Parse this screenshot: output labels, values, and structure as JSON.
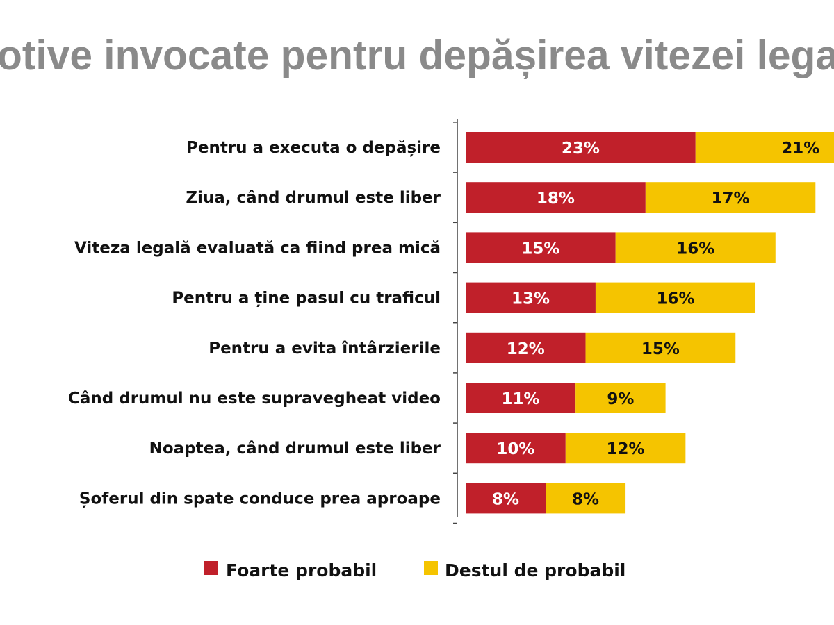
{
  "chart_data": {
    "type": "bar",
    "orientation": "horizontal",
    "stacked": true,
    "title": "otive invocate pentru depășirea vitezei lega",
    "categories": [
      "Pentru a executa o depășire",
      "Ziua, când drumul este liber",
      "Viteza legală evaluată ca fiind prea mică",
      "Pentru a ține pasul cu traficul",
      "Pentru a evita întârzierile",
      "Când drumul nu este supravegheat video",
      "Noaptea, când drumul este liber",
      "Șoferul din spate conduce prea aproape"
    ],
    "series": [
      {
        "name": "Foarte probabil",
        "color": "#c0202a",
        "label_color": "#ffffff",
        "values": [
          23,
          18,
          15,
          13,
          12,
          11,
          10,
          8
        ]
      },
      {
        "name": "Destul de probabil",
        "color": "#f5c400",
        "label_color": "#111111",
        "values": [
          21,
          17,
          16,
          16,
          15,
          9,
          12,
          8
        ]
      }
    ],
    "value_suffix": "%",
    "xlabel": "",
    "ylabel": "",
    "grid": false,
    "legend_position": "bottom"
  }
}
